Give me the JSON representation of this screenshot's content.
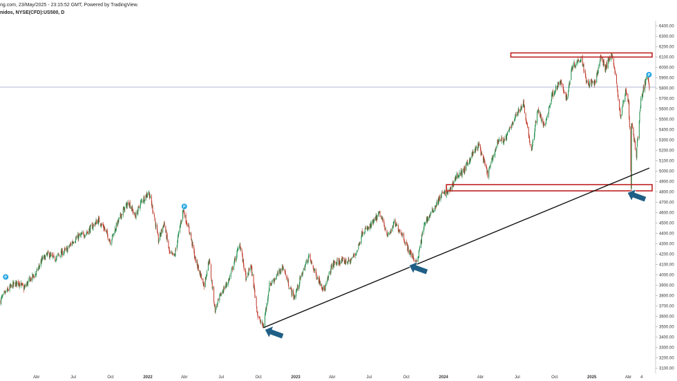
{
  "header": {
    "line1": "ng.com, 23/May/2025 - 23:15:52 GMT, Powered by TradingView.",
    "line2": "nidos, NYSE(CFD):US500, D"
  },
  "chart_data": {
    "type": "candlestick",
    "symbol": "NYSE(CFD):US500",
    "interval": "D",
    "ylim": [
      3050,
      6450
    ],
    "y_ticks": [
      3100,
      3200,
      3300,
      3400,
      3500,
      3600,
      3700,
      3800,
      3900,
      4000,
      4100,
      4200,
      4300,
      4400,
      4500,
      4600,
      4700,
      4800,
      4900,
      5000,
      5100,
      5200,
      5300,
      5400,
      5500,
      5600,
      5700,
      5800,
      5900,
      6000,
      6100,
      6200,
      6300,
      6400
    ],
    "x_ticks": [
      "Abr",
      "Jul",
      "Oct",
      "2022",
      "Abr",
      "Jul",
      "Oct",
      "2023",
      "Abr",
      "Jul",
      "Oct",
      "2024",
      "Abr",
      "Jul",
      "Oct",
      "2025",
      "Abr",
      "4"
    ],
    "x_tick_dates": [
      "2021-04-01",
      "2021-07-01",
      "2021-10-01",
      "2022-01-01",
      "2022-04-01",
      "2022-07-01",
      "2022-10-01",
      "2023-01-01",
      "2023-04-01",
      "2023-07-01",
      "2023-10-01",
      "2024-01-01",
      "2024-04-01",
      "2024-07-01",
      "2024-10-01",
      "2025-01-01",
      "2025-04-01",
      "2025-05-04"
    ],
    "x_range": [
      "2021-01-01",
      "2025-05-23"
    ],
    "price_path": [
      [
        "2021-01-01",
        3750
      ],
      [
        "2021-01-15",
        3830
      ],
      [
        "2021-02-01",
        3900
      ],
      [
        "2021-02-15",
        3930
      ],
      [
        "2021-03-01",
        3870
      ],
      [
        "2021-03-15",
        3950
      ],
      [
        "2021-04-01",
        4020
      ],
      [
        "2021-04-15",
        4150
      ],
      [
        "2021-05-01",
        4200
      ],
      [
        "2021-05-15",
        4150
      ],
      [
        "2021-06-01",
        4210
      ],
      [
        "2021-06-15",
        4240
      ],
      [
        "2021-07-01",
        4330
      ],
      [
        "2021-07-15",
        4370
      ],
      [
        "2021-08-01",
        4400
      ],
      [
        "2021-08-15",
        4460
      ],
      [
        "2021-09-01",
        4530
      ],
      [
        "2021-09-15",
        4450
      ],
      [
        "2021-10-01",
        4320
      ],
      [
        "2021-10-15",
        4470
      ],
      [
        "2021-11-01",
        4620
      ],
      [
        "2021-11-15",
        4700
      ],
      [
        "2021-12-01",
        4560
      ],
      [
        "2021-12-15",
        4700
      ],
      [
        "2022-01-03",
        4800
      ],
      [
        "2022-01-15",
        4600
      ],
      [
        "2022-01-27",
        4330
      ],
      [
        "2022-02-10",
        4500
      ],
      [
        "2022-02-24",
        4200
      ],
      [
        "2022-03-08",
        4180
      ],
      [
        "2022-03-29",
        4630
      ],
      [
        "2022-04-15",
        4400
      ],
      [
        "2022-04-28",
        4150
      ],
      [
        "2022-05-20",
        3900
      ],
      [
        "2022-06-01",
        4150
      ],
      [
        "2022-06-16",
        3660
      ],
      [
        "2022-07-01",
        3820
      ],
      [
        "2022-07-20",
        3950
      ],
      [
        "2022-08-16",
        4300
      ],
      [
        "2022-09-01",
        3950
      ],
      [
        "2022-09-12",
        4100
      ],
      [
        "2022-09-30",
        3590
      ],
      [
        "2022-10-13",
        3500
      ],
      [
        "2022-10-28",
        3900
      ],
      [
        "2022-11-15",
        3990
      ],
      [
        "2022-12-01",
        4080
      ],
      [
        "2022-12-15",
        3900
      ],
      [
        "2022-12-28",
        3780
      ],
      [
        "2023-01-15",
        3990
      ],
      [
        "2023-02-02",
        4180
      ],
      [
        "2023-02-20",
        4000
      ],
      [
        "2023-03-13",
        3850
      ],
      [
        "2023-04-01",
        4100
      ],
      [
        "2023-04-20",
        4130
      ],
      [
        "2023-05-15",
        4130
      ],
      [
        "2023-06-01",
        4230
      ],
      [
        "2023-06-15",
        4420
      ],
      [
        "2023-07-01",
        4450
      ],
      [
        "2023-07-27",
        4590
      ],
      [
        "2023-08-18",
        4370
      ],
      [
        "2023-09-01",
        4500
      ],
      [
        "2023-09-20",
        4400
      ],
      [
        "2023-10-05",
        4250
      ],
      [
        "2023-10-27",
        4110
      ],
      [
        "2023-11-15",
        4500
      ],
      [
        "2023-12-01",
        4590
      ],
      [
        "2023-12-28",
        4780
      ],
      [
        "2024-01-15",
        4800
      ],
      [
        "2024-02-01",
        4950
      ],
      [
        "2024-02-20",
        5000
      ],
      [
        "2024-03-10",
        5150
      ],
      [
        "2024-03-28",
        5250
      ],
      [
        "2024-04-19",
        4970
      ],
      [
        "2024-05-15",
        5300
      ],
      [
        "2024-06-01",
        5300
      ],
      [
        "2024-06-20",
        5480
      ],
      [
        "2024-07-16",
        5660
      ],
      [
        "2024-08-05",
        5180
      ],
      [
        "2024-08-20",
        5600
      ],
      [
        "2024-09-06",
        5420
      ],
      [
        "2024-09-25",
        5740
      ],
      [
        "2024-10-15",
        5860
      ],
      [
        "2024-11-01",
        5700
      ],
      [
        "2024-11-12",
        6000
      ],
      [
        "2024-12-06",
        6100
      ],
      [
        "2024-12-20",
        5850
      ],
      [
        "2025-01-10",
        5850
      ],
      [
        "2025-01-23",
        6110
      ],
      [
        "2025-02-03",
        5990
      ],
      [
        "2025-02-19",
        6140
      ],
      [
        "2025-03-01",
        5900
      ],
      [
        "2025-03-13",
        5520
      ],
      [
        "2025-03-25",
        5780
      ],
      [
        "2025-04-02",
        5670
      ],
      [
        "2025-04-08",
        4850
      ],
      [
        "2025-04-09",
        5460
      ],
      [
        "2025-04-21",
        5160
      ],
      [
        "2025-05-02",
        5690
      ],
      [
        "2025-05-12",
        5840
      ],
      [
        "2025-05-19",
        5950
      ],
      [
        "2025-05-23",
        5810
      ]
    ],
    "current_price_line": 5810,
    "trendline": {
      "from": [
        "2022-10-13",
        3490
      ],
      "to": [
        "2025-05-23",
        5030
      ]
    },
    "resistance_box": {
      "from": "2024-06-15",
      "to": "2025-05-23",
      "low": 6100,
      "high": 6140
    },
    "support_box": {
      "from": "2024-01-08",
      "to": "2025-05-23",
      "low": 4810,
      "high": 4870
    },
    "arrows": [
      {
        "date": "2022-11-08",
        "price": 3440
      },
      {
        "date": "2023-10-30",
        "price": 4060
      },
      {
        "date": "2025-04-21",
        "price": 4760
      }
    ],
    "flags": [
      {
        "date": "2021-01-15",
        "price": 3980,
        "label": "P"
      },
      {
        "date": "2022-04-01",
        "price": 4660,
        "label": "P"
      },
      {
        "date": "2025-05-22",
        "price": 5930,
        "label": "P"
      }
    ],
    "colors": {
      "up": "#1e8c4a",
      "down": "#c0392b",
      "trendline": "#111111",
      "boxes": "#c0201f",
      "arrows": "#1f5f86",
      "flags": "#25a6e3",
      "price_line": "#9aa3c8"
    }
  }
}
